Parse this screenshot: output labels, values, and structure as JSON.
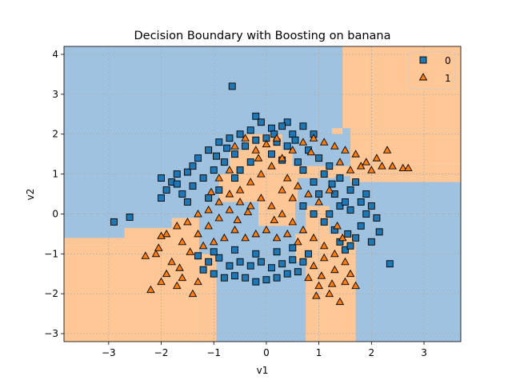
{
  "chart_data": {
    "type": "scatter",
    "title": "Decision Boundary with Boosting on banana",
    "xlabel": "v1",
    "ylabel": "v2",
    "xlim": [
      -3.85,
      3.7
    ],
    "ylim": [
      -3.2,
      4.2
    ],
    "xticks": [
      -3,
      -2,
      -1,
      0,
      1,
      2,
      3
    ],
    "yticks": [
      -3,
      -2,
      -1,
      0,
      1,
      2,
      3,
      4
    ],
    "xtick_labels": [
      "−3",
      "−2",
      "−1",
      "0",
      "1",
      "2",
      "3"
    ],
    "ytick_labels": [
      "−3",
      "−2",
      "−1",
      "0",
      "1",
      "2",
      "3",
      "4"
    ],
    "grid": true,
    "legend_position": "top-right",
    "region_colors": {
      "0": "#9ec2e0",
      "1": "#ffc796"
    },
    "marker_colors": {
      "0": "#1f77b4",
      "1": "#ff7f0e"
    },
    "decision_regions": {
      "class_1": [
        [
          -3.85,
          -3.2,
          -1.28,
          -0.75
        ],
        [
          -1.28,
          -3.2,
          -0.95,
          -1.0
        ],
        [
          -2.7,
          -0.75,
          -1.28,
          -0.35
        ],
        [
          -1.8,
          -0.35,
          -1.28,
          -0.1
        ],
        [
          -2.7,
          -0.75,
          -3.85,
          -0.6
        ],
        [
          0.75,
          -3.2,
          1.7,
          -1.2
        ],
        [
          0.55,
          -1.2,
          1.7,
          -0.5
        ],
        [
          0.75,
          -0.5,
          1.2,
          0.2
        ],
        [
          -0.15,
          -0.3,
          0.55,
          0.6
        ],
        [
          -0.9,
          0.3,
          0.6,
          1.0
        ],
        [
          -0.7,
          1.0,
          0.5,
          1.6
        ],
        [
          -0.4,
          1.6,
          0.3,
          2.0
        ],
        [
          0.3,
          0.9,
          1.3,
          1.2
        ],
        [
          1.3,
          0.95,
          1.6,
          1.2
        ],
        [
          1.6,
          0.8,
          3.7,
          1.2
        ],
        [
          1.6,
          1.2,
          3.7,
          2.15
        ],
        [
          1.45,
          2.15,
          3.7,
          4.2
        ],
        [
          1.25,
          2.0,
          1.45,
          2.15
        ],
        [
          -1.65,
          -1.0,
          -1.28,
          -0.35
        ]
      ]
    },
    "series": [
      {
        "name": "0",
        "marker": "square",
        "points": [
          [
            -0.65,
            3.2
          ],
          [
            -0.2,
            2.45
          ],
          [
            0.4,
            2.3
          ],
          [
            0.7,
            2.2
          ],
          [
            0.9,
            2.0
          ],
          [
            -2.9,
            -0.2
          ],
          [
            -2.6,
            -0.08
          ],
          [
            2.35,
            -1.25
          ],
          [
            2.15,
            -0.45
          ],
          [
            2.0,
            -0.7
          ],
          [
            -2.0,
            0.9
          ],
          [
            -1.9,
            0.6
          ],
          [
            -2.0,
            0.4
          ],
          [
            -1.7,
            1.0
          ],
          [
            -1.5,
            1.05
          ],
          [
            -1.3,
            1.4
          ],
          [
            -1.1,
            1.6
          ],
          [
            -0.9,
            1.8
          ],
          [
            -0.7,
            1.9
          ],
          [
            -0.5,
            2.0
          ],
          [
            -0.3,
            2.1
          ],
          [
            0.1,
            2.15
          ],
          [
            0.3,
            2.2
          ],
          [
            0.5,
            2.0
          ],
          [
            0.8,
            1.6
          ],
          [
            1.0,
            1.4
          ],
          [
            1.2,
            1.2
          ],
          [
            1.4,
            0.9
          ],
          [
            1.6,
            0.6
          ],
          [
            1.8,
            0.3
          ],
          [
            1.9,
            0.0
          ],
          [
            1.8,
            -0.3
          ],
          [
            1.7,
            -0.6
          ],
          [
            1.5,
            -0.9
          ],
          [
            1.4,
            0.2
          ],
          [
            1.2,
            0.0
          ],
          [
            1.1,
            -0.2
          ],
          [
            1.0,
            0.5
          ],
          [
            0.9,
            0.8
          ],
          [
            0.7,
            1.1
          ],
          [
            -1.4,
            0.7
          ],
          [
            -1.2,
            0.9
          ],
          [
            -1.0,
            1.1
          ],
          [
            -0.8,
            1.3
          ],
          [
            -0.6,
            1.5
          ],
          [
            -0.4,
            1.7
          ],
          [
            -0.2,
            1.85
          ],
          [
            0.0,
            1.9
          ],
          [
            0.2,
            1.8
          ],
          [
            0.4,
            1.7
          ],
          [
            -1.2,
            -1.4
          ],
          [
            -1.0,
            -1.5
          ],
          [
            -0.8,
            -1.6
          ],
          [
            -0.6,
            -1.55
          ],
          [
            -0.4,
            -1.6
          ],
          [
            -0.2,
            -1.7
          ],
          [
            0.0,
            -1.65
          ],
          [
            0.2,
            -1.6
          ],
          [
            0.4,
            -1.5
          ],
          [
            0.6,
            -1.45
          ],
          [
            -1.1,
            -1.2
          ],
          [
            -0.9,
            -1.1
          ],
          [
            -0.7,
            -1.3
          ],
          [
            -0.5,
            -1.2
          ],
          [
            -0.3,
            -1.3
          ],
          [
            -0.1,
            -1.2
          ],
          [
            0.1,
            -1.35
          ],
          [
            0.3,
            -1.25
          ],
          [
            0.5,
            -1.15
          ],
          [
            0.7,
            -1.2
          ],
          [
            -1.3,
            -1.05
          ],
          [
            -1.0,
            -0.95
          ],
          [
            -0.6,
            -0.9
          ],
          [
            -0.2,
            -1.0
          ],
          [
            0.2,
            -0.95
          ],
          [
            0.5,
            -0.85
          ],
          [
            0.8,
            -1.0
          ],
          [
            -1.5,
            0.3
          ],
          [
            -1.6,
            0.5
          ],
          [
            -1.8,
            0.8
          ],
          [
            -1.1,
            0.4
          ],
          [
            -0.9,
            0.6
          ],
          [
            1.3,
            0.5
          ],
          [
            1.5,
            0.3
          ],
          [
            1.6,
            0.1
          ],
          [
            1.7,
            0.8
          ],
          [
            1.9,
            0.5
          ],
          [
            2.0,
            0.2
          ],
          [
            2.1,
            -0.1
          ],
          [
            1.55,
            -0.5
          ],
          [
            1.3,
            -0.4
          ],
          [
            1.4,
            -0.7
          ],
          [
            1.6,
            -0.8
          ],
          [
            1.25,
            0.75
          ],
          [
            1.1,
            1.0
          ],
          [
            -0.5,
            1.1
          ],
          [
            -0.3,
            1.3
          ],
          [
            0.1,
            1.5
          ],
          [
            0.3,
            1.35
          ],
          [
            0.6,
            1.3
          ],
          [
            -1.7,
            0.75
          ],
          [
            -1.4,
            1.2
          ],
          [
            -0.6,
            0.9
          ],
          [
            0.7,
            0.2
          ],
          [
            0.9,
            0.0
          ],
          [
            -0.95,
            1.45
          ],
          [
            -0.75,
            1.65
          ],
          [
            0.55,
            1.85
          ],
          [
            0.15,
            2.0
          ],
          [
            -0.1,
            2.3
          ]
        ]
      },
      {
        "name": "1",
        "marker": "triangle",
        "points": [
          [
            -2.2,
            -1.9
          ],
          [
            -2.0,
            -1.7
          ],
          [
            -1.9,
            -1.5
          ],
          [
            -1.7,
            -1.8
          ],
          [
            -1.6,
            -1.6
          ],
          [
            -1.4,
            -2.0
          ],
          [
            -1.3,
            -1.7
          ],
          [
            -1.8,
            -1.2
          ],
          [
            -2.1,
            -1.0
          ],
          [
            -2.3,
            -1.05
          ],
          [
            -1.9,
            -0.5
          ],
          [
            -2.0,
            -0.55
          ],
          [
            -1.7,
            -0.3
          ],
          [
            -1.5,
            -0.2
          ],
          [
            -1.6,
            -0.7
          ],
          [
            -1.3,
            -0.5
          ],
          [
            -1.1,
            -0.3
          ],
          [
            -0.9,
            -0.1
          ],
          [
            -0.7,
            0.1
          ],
          [
            -0.5,
            0.3
          ],
          [
            -0.3,
            0.2
          ],
          [
            -0.1,
            0.4
          ],
          [
            0.1,
            0.2
          ],
          [
            0.3,
            0.0
          ],
          [
            0.5,
            -0.2
          ],
          [
            0.7,
            -0.4
          ],
          [
            0.9,
            -0.6
          ],
          [
            1.1,
            -0.8
          ],
          [
            1.3,
            -1.0
          ],
          [
            1.5,
            -1.2
          ],
          [
            1.6,
            -1.5
          ],
          [
            1.7,
            -1.8
          ],
          [
            1.4,
            -2.2
          ],
          [
            1.2,
            -2.0
          ],
          [
            1.0,
            -1.8
          ],
          [
            0.8,
            -1.6
          ],
          [
            0.9,
            -1.3
          ],
          [
            1.1,
            -1.1
          ],
          [
            1.3,
            -1.4
          ],
          [
            1.5,
            -1.7
          ],
          [
            2.3,
            1.6
          ],
          [
            2.1,
            1.4
          ],
          [
            1.9,
            1.3
          ],
          [
            1.7,
            1.5
          ],
          [
            1.5,
            1.6
          ],
          [
            2.4,
            1.2
          ],
          [
            2.6,
            1.15
          ],
          [
            2.7,
            1.15
          ],
          [
            2.2,
            1.2
          ],
          [
            2.0,
            1.1
          ],
          [
            1.8,
            1.2
          ],
          [
            1.6,
            1.1
          ],
          [
            1.4,
            1.3
          ],
          [
            1.3,
            1.7
          ],
          [
            1.1,
            1.8
          ],
          [
            0.9,
            1.9
          ],
          [
            0.7,
            1.8
          ],
          [
            0.5,
            1.6
          ],
          [
            0.3,
            1.4
          ],
          [
            0.1,
            1.2
          ],
          [
            -0.1,
            1.0
          ],
          [
            -0.3,
            0.8
          ],
          [
            -0.5,
            0.6
          ],
          [
            -0.7,
            0.5
          ],
          [
            -0.9,
            0.3
          ],
          [
            -1.1,
            0.1
          ],
          [
            -1.3,
            0.0
          ],
          [
            -0.2,
            1.6
          ],
          [
            0.0,
            1.75
          ],
          [
            0.2,
            1.9
          ],
          [
            -0.4,
            1.9
          ],
          [
            -0.6,
            1.7
          ],
          [
            0.4,
            0.9
          ],
          [
            0.6,
            0.7
          ],
          [
            0.8,
            0.5
          ],
          [
            -0.8,
            -0.6
          ],
          [
            -0.6,
            -0.4
          ],
          [
            -0.4,
            -0.6
          ],
          [
            -0.2,
            -0.5
          ],
          [
            0.0,
            -0.4
          ],
          [
            0.2,
            -0.6
          ],
          [
            0.4,
            -0.5
          ],
          [
            0.6,
            -0.7
          ],
          [
            -1.2,
            -0.8
          ],
          [
            -1.0,
            -0.7
          ],
          [
            -0.9,
            0.9
          ],
          [
            -0.7,
            1.1
          ],
          [
            -1.05,
            0.55
          ],
          [
            1.0,
            0.3
          ],
          [
            1.2,
            0.6
          ],
          [
            0.5,
            0.4
          ],
          [
            0.3,
            0.6
          ],
          [
            -0.55,
            -0.15
          ],
          [
            -0.35,
            0.05
          ],
          [
            0.15,
            -0.15
          ],
          [
            -1.45,
            -0.95
          ],
          [
            -1.65,
            -1.35
          ],
          [
            -2.05,
            -0.85
          ],
          [
            1.05,
            -1.55
          ],
          [
            1.25,
            -1.75
          ],
          [
            0.95,
            -2.05
          ],
          [
            1.45,
            -0.6
          ],
          [
            1.35,
            -0.3
          ],
          [
            0.85,
            1.55
          ],
          [
            -0.15,
            1.4
          ]
        ]
      }
    ]
  }
}
